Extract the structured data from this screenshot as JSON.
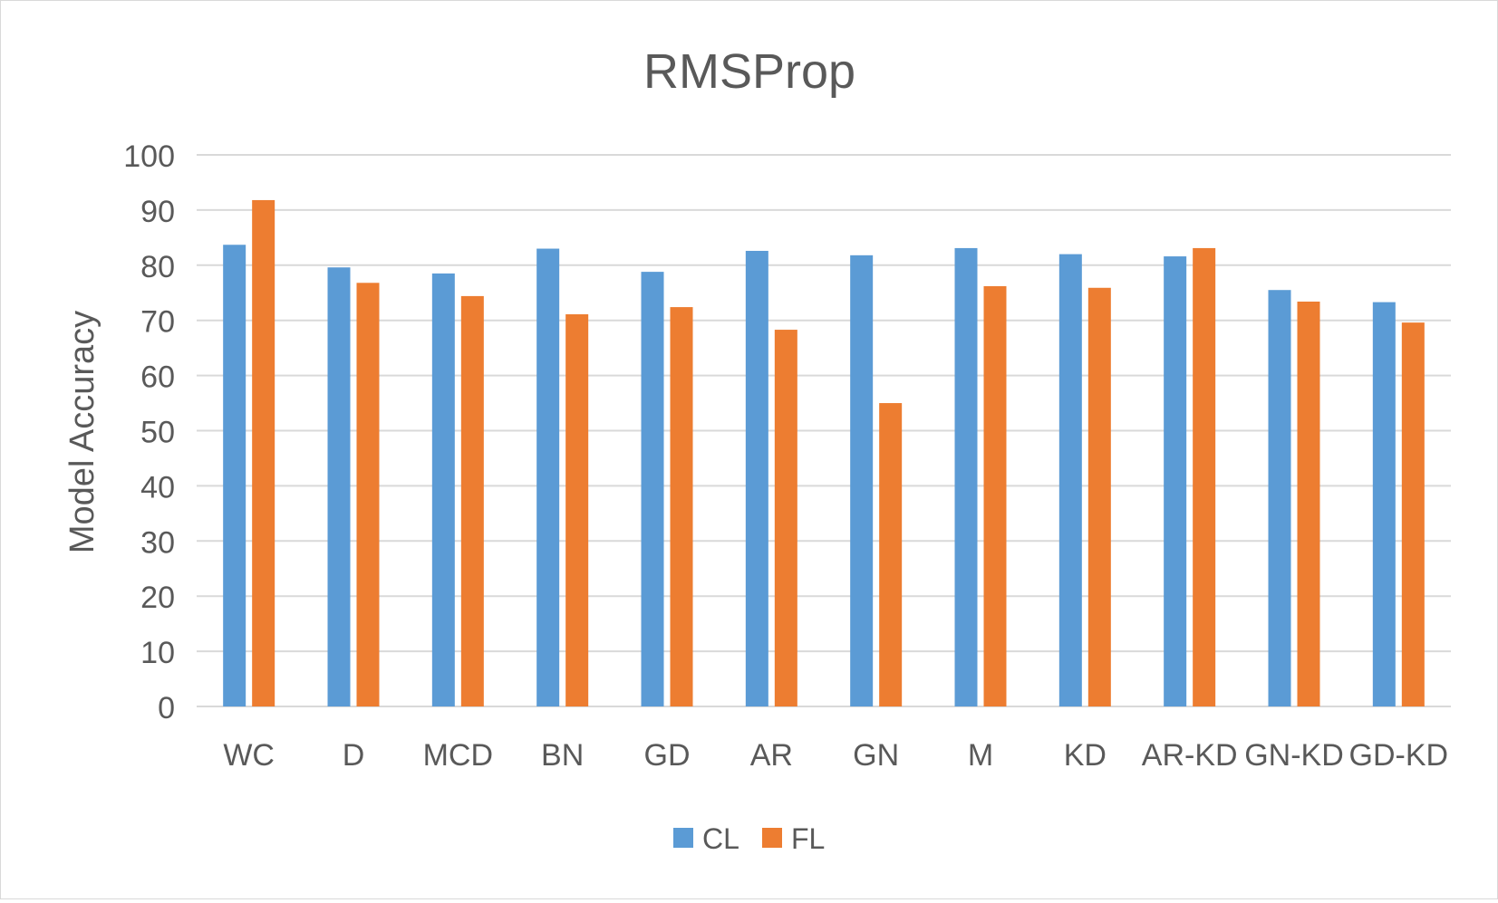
{
  "chart_data": {
    "type": "bar",
    "title": "RMSProp",
    "xlabel": "",
    "ylabel": "Model Accuracy",
    "ylim": [
      0,
      100
    ],
    "yticks": [
      0,
      10,
      20,
      30,
      40,
      50,
      60,
      70,
      80,
      90,
      100
    ],
    "grid": true,
    "legend_position": "bottom",
    "categories": [
      "WC",
      "D",
      "MCD",
      "BN",
      "GD",
      "AR",
      "GN",
      "M",
      "KD",
      "AR-KD",
      "GN-KD",
      "GD-KD"
    ],
    "series": [
      {
        "name": "CL",
        "color": "#5b9bd5",
        "values": [
          83.7,
          79.6,
          78.5,
          83.0,
          78.8,
          82.6,
          81.8,
          83.1,
          82.0,
          81.6,
          75.5,
          73.3
        ]
      },
      {
        "name": "FL",
        "color": "#ed7d31",
        "values": [
          91.8,
          76.8,
          74.4,
          71.1,
          72.4,
          68.3,
          55.0,
          76.2,
          75.9,
          83.1,
          73.4,
          69.6
        ]
      }
    ]
  },
  "colors": {
    "gridline": "#d9d9d9",
    "axis_text": "#595959"
  }
}
